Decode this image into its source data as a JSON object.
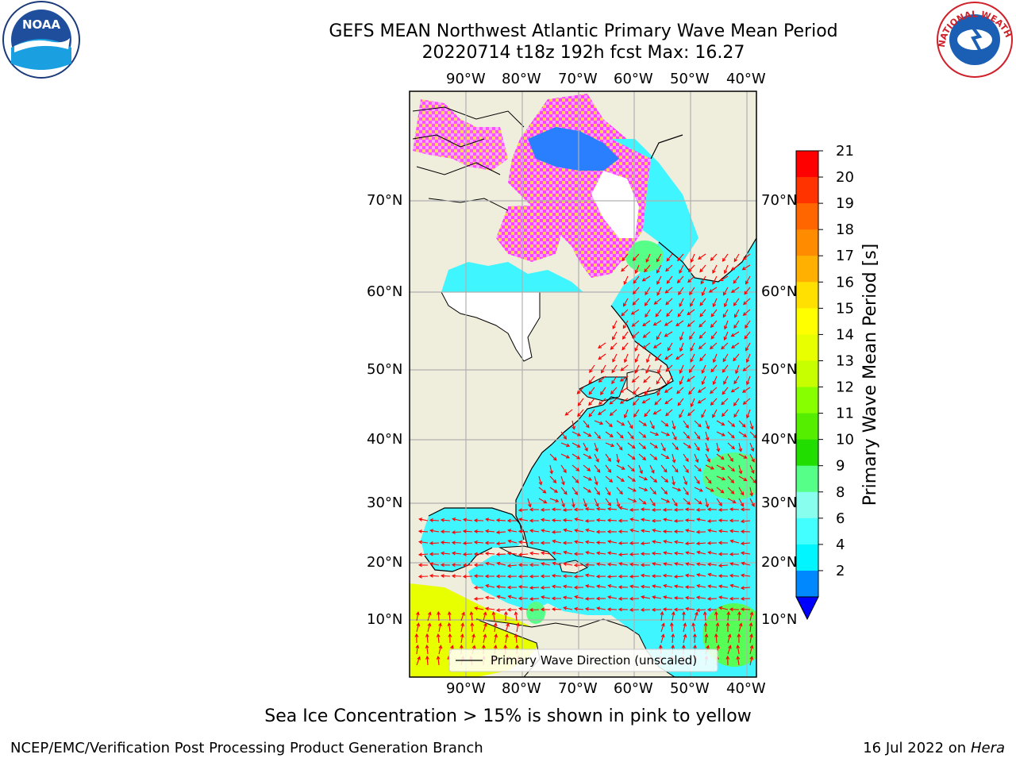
{
  "title": {
    "line1": "GEFS MEAN Northwest Atlantic Primary Wave Mean Period",
    "line2": "20220714 t18z 192h fcst   Max: 16.27"
  },
  "logos": {
    "left": {
      "text": "NOAA",
      "ring_text": "NATIONAL OCEANIC AND ATMOSPHERIC ADMINISTRATION · U.S. DEPARTMENT OF COMMERCE",
      "icon": "noaa-logo"
    },
    "right": {
      "ring_text": "NATIONAL WEATHER SERVICE",
      "icon": "nws-logo"
    }
  },
  "map": {
    "lon_labels": [
      "90°W",
      "80°W",
      "70°W",
      "60°W",
      "50°W",
      "40°W"
    ],
    "lat_labels": [
      "70°N",
      "60°N",
      "50°N",
      "40°N",
      "30°N",
      "20°N",
      "10°N"
    ],
    "legend_label": "Primary Wave Direction (unscaled)",
    "colors": {
      "land": "#efeddc",
      "ocean_low": "#00ffff",
      "ocean_mid": "#3ff5ff",
      "ice": "#ff40ff",
      "arrow": "#ff0000",
      "grid": "#b0b0b0"
    }
  },
  "colorbar": {
    "label": "Primary Wave Mean Period [s]",
    "ticks": [
      "21",
      "20",
      "19",
      "18",
      "17",
      "16",
      "15",
      "14",
      "13",
      "12",
      "11",
      "10",
      "9",
      "8",
      "6",
      "4",
      "2"
    ],
    "colors": [
      "#ff0000",
      "#ff3300",
      "#ff6600",
      "#ff8c00",
      "#ffb000",
      "#ffe000",
      "#ffff00",
      "#e8ff00",
      "#c8ff00",
      "#88ff00",
      "#55ee00",
      "#22dd00",
      "#55ff88",
      "#88ffee",
      "#44ffff",
      "#00f5ff",
      "#0088ff"
    ],
    "extend_color": "#0000ff"
  },
  "caption": "Sea Ice Concentration > 15% is shown in pink to yellow",
  "footer": {
    "left": "NCEP/EMC/Verification Post Processing Product Generation Branch",
    "date": "16 Jul 2022 on ",
    "machine": "Hera"
  }
}
